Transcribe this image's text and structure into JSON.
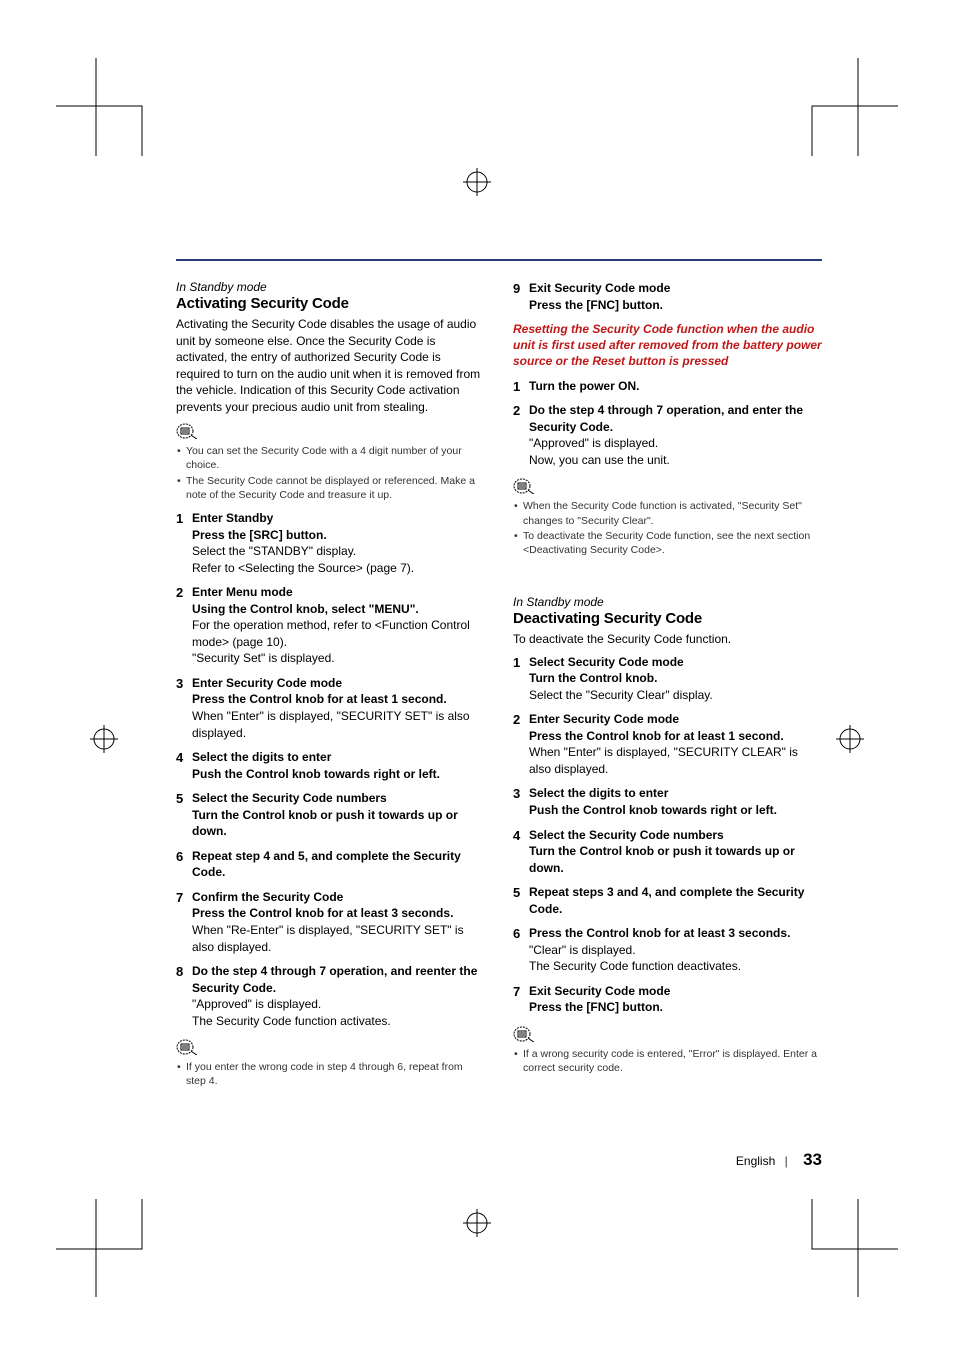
{
  "colors": {
    "rule": "#2a3a7a",
    "red": "#c01818",
    "text": "#000000",
    "note_text": "#333333",
    "bg": "#ffffff"
  },
  "typography": {
    "body_pt": 12,
    "note_pt": 10.5,
    "h2_pt": 15,
    "step_num_pt": 13,
    "page_num_pt": 17
  },
  "left": {
    "standby": "In Standby mode",
    "title": "Activating Security Code",
    "intro": "Activating the Security Code disables the usage of audio unit by someone else. Once the Security Code is activated, the entry of authorized Security Code is required to turn on the audio unit when it is removed from the vehicle. Indication of this Security Code activation prevents  your precious audio unit from stealing.",
    "notes": [
      "You can set the Security Code with a 4 digit number of your choice.",
      "The Security Code cannot be displayed or referenced. Make a note of the Security Code and treasure it up."
    ],
    "steps": [
      {
        "title": "Enter Standby",
        "action": "Press the [SRC] button.",
        "body": "Select the \"STANDBY\" display.\nRefer to <Selecting the Source> (page 7)."
      },
      {
        "title": "Enter Menu mode",
        "action": "Using the Control knob, select \"MENU\".",
        "body": "For the operation method, refer to <Function Control mode> (page 10).\n\"Security Set\" is displayed."
      },
      {
        "title": "Enter Security Code mode",
        "action": "Press the Control knob for at least 1 second.",
        "body": "When \"Enter\" is displayed, \"SECURITY SET\" is also displayed."
      },
      {
        "title": "Select the digits to enter",
        "action": "Push the Control knob towards right or left.",
        "body": ""
      },
      {
        "title": "Select the Security Code numbers",
        "action": "Turn the Control knob or push it towards up or down.",
        "body": ""
      },
      {
        "title": "Repeat step 4 and 5, and complete the Security Code.",
        "action": "",
        "body": ""
      },
      {
        "title": "Confirm the Security Code",
        "action": "Press the Control knob for at least 3 seconds.",
        "body": "When \"Re-Enter\" is displayed, \"SECURITY SET\" is also displayed."
      },
      {
        "title": "Do the step 4 through 7 operation, and reenter the Security Code.",
        "action": "",
        "body": "\"Approved\" is displayed.\nThe Security Code function activates."
      }
    ],
    "end_notes": [
      "If you enter the wrong code in step 4 through 6, repeat from step 4."
    ]
  },
  "right_top": {
    "steps": [
      {
        "num": "9",
        "title": "Exit Security Code mode",
        "action": "Press the [FNC] button.",
        "body": ""
      }
    ],
    "red": "Resetting the Security Code function when the audio unit is first used after removed from the battery power source or the Reset button is pressed",
    "reset_steps": [
      {
        "title": "Turn the power ON.",
        "action": "",
        "body": ""
      },
      {
        "title": "Do the step 4 through 7 operation, and enter the Security Code.",
        "action": "",
        "body": "\"Approved\" is displayed.\nNow, you can use the unit."
      }
    ],
    "reset_notes": [
      "When the Security Code function is activated, \"Security Set\" changes to \"Security Clear\".",
      "To deactivate the Security Code function, see the next section <Deactivating Security Code>."
    ]
  },
  "right_bottom": {
    "standby": "In Standby mode",
    "title": "Deactivating Security Code",
    "intro": "To deactivate the Security Code function.",
    "steps": [
      {
        "title": "Select Security Code mode",
        "action": "Turn the Control knob.",
        "body": "Select the \"Security Clear\" display."
      },
      {
        "title": "Enter Security Code mode",
        "action": "Press the Control knob for at least 1 second.",
        "body": "When \"Enter\" is displayed, \"SECURITY CLEAR\" is also displayed."
      },
      {
        "title": "Select the digits to enter",
        "action": "Push the Control knob towards right or left.",
        "body": ""
      },
      {
        "title": "Select the Security Code numbers",
        "action": "Turn the Control knob or push it towards up or down.",
        "body": ""
      },
      {
        "title": "Repeat steps 3 and 4, and complete the Security Code.",
        "action": "",
        "body": ""
      },
      {
        "title": "Press the Control knob for at least 3 seconds.",
        "action": "",
        "body": "\"Clear\" is displayed.\nThe Security Code function deactivates."
      },
      {
        "title": "Exit Security Code mode",
        "action": "Press the [FNC] button.",
        "body": ""
      }
    ],
    "end_notes": [
      "If a wrong security code is entered, \"Error\" is displayed. Enter a correct security code."
    ]
  },
  "footer": {
    "lang": "English",
    "page": "33"
  }
}
